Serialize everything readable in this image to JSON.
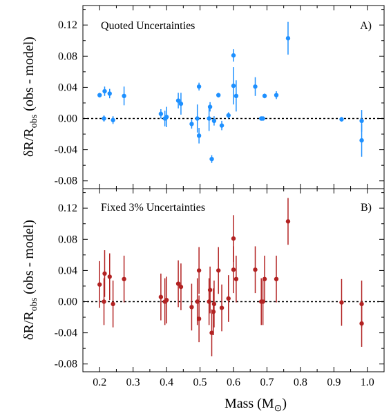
{
  "chart_data": {
    "type": "scatter",
    "x_axis": {
      "label_main": "Mass (M",
      "label_sub": "⊙",
      "label_close": ")",
      "lim": [
        0.15,
        1.05
      ],
      "ticks": [
        "0.2",
        "0.3",
        "0.4",
        "0.5",
        "0.6",
        "0.7",
        "0.8",
        "0.9",
        "1.0"
      ],
      "tick_values": [
        0.2,
        0.3,
        0.4,
        0.5,
        0.6,
        0.7,
        0.8,
        0.9,
        1.0
      ]
    },
    "y_axis": {
      "label_main": "δR/R",
      "label_sub": "obs",
      "label_tail": " (obs - model)"
    },
    "panels": [
      {
        "id": "A",
        "title": "Quoted Uncertainties",
        "tag": "A)",
        "color": "#1e90ff",
        "ylim": [
          -0.09,
          0.145
        ],
        "yticks": [
          "0.12",
          "0.08",
          "0.04",
          "0.00",
          "-0.04",
          "-0.08"
        ],
        "ytick_values": [
          0.12,
          0.08,
          0.04,
          0.0,
          -0.04,
          -0.08
        ],
        "reference_line": 0.0,
        "points": [
          {
            "x": 0.2,
            "y": 0.03,
            "err": 0.003
          },
          {
            "x": 0.213,
            "y": 0.0,
            "err": 0.004
          },
          {
            "x": 0.215,
            "y": 0.035,
            "err": 0.006
          },
          {
            "x": 0.23,
            "y": 0.032,
            "err": 0.006
          },
          {
            "x": 0.24,
            "y": -0.002,
            "err": 0.005
          },
          {
            "x": 0.273,
            "y": 0.029,
            "err": 0.012
          },
          {
            "x": 0.383,
            "y": 0.006,
            "err": 0.006
          },
          {
            "x": 0.395,
            "y": 0.0,
            "err": 0.01
          },
          {
            "x": 0.4,
            "y": 0.002,
            "err": 0.013
          },
          {
            "x": 0.435,
            "y": 0.023,
            "err": 0.01
          },
          {
            "x": 0.443,
            "y": 0.019,
            "err": 0.014
          },
          {
            "x": 0.475,
            "y": -0.007,
            "err": 0.006
          },
          {
            "x": 0.492,
            "y": 0.0,
            "err": 0.018
          },
          {
            "x": 0.497,
            "y": 0.041,
            "err": 0.005
          },
          {
            "x": 0.497,
            "y": -0.022,
            "err": 0.01
          },
          {
            "x": 0.527,
            "y": 0.0,
            "err": 0.016
          },
          {
            "x": 0.53,
            "y": 0.015,
            "err": 0.006
          },
          {
            "x": 0.535,
            "y": -0.052,
            "err": 0.005
          },
          {
            "x": 0.542,
            "y": -0.003,
            "err": 0.006
          },
          {
            "x": 0.555,
            "y": 0.03,
            "err": 0.003
          },
          {
            "x": 0.565,
            "y": -0.009,
            "err": 0.006
          },
          {
            "x": 0.585,
            "y": 0.004,
            "err": 0.004
          },
          {
            "x": 0.6,
            "y": 0.081,
            "err": 0.008
          },
          {
            "x": 0.6,
            "y": 0.042,
            "err": 0.024
          },
          {
            "x": 0.608,
            "y": 0.029,
            "err": 0.02
          },
          {
            "x": 0.665,
            "y": 0.041,
            "err": 0.012
          },
          {
            "x": 0.683,
            "y": 0.0,
            "err": 0.002
          },
          {
            "x": 0.688,
            "y": 0.0,
            "err": 0.002
          },
          {
            "x": 0.693,
            "y": 0.029,
            "err": 0.003
          },
          {
            "x": 0.728,
            "y": 0.03,
            "err": 0.005
          },
          {
            "x": 0.763,
            "y": 0.103,
            "err": 0.021
          },
          {
            "x": 0.923,
            "y": -0.001,
            "err": 0.003
          },
          {
            "x": 0.983,
            "y": -0.003,
            "err": 0.014
          },
          {
            "x": 0.983,
            "y": -0.028,
            "err": 0.021
          }
        ]
      },
      {
        "id": "B",
        "title": "Fixed 3% Uncertainties",
        "tag": "B)",
        "color": "#b22222",
        "ylim": [
          -0.09,
          0.145
        ],
        "yticks": [
          "0.12",
          "0.08",
          "0.04",
          "0.00",
          "-0.04",
          "-0.08"
        ],
        "ytick_values": [
          0.12,
          0.08,
          0.04,
          0.0,
          -0.04,
          -0.08
        ],
        "reference_line": 0.0,
        "points": [
          {
            "x": 0.2,
            "y": 0.022,
            "err": 0.03
          },
          {
            "x": 0.213,
            "y": 0.0,
            "err": 0.03
          },
          {
            "x": 0.215,
            "y": 0.036,
            "err": 0.03
          },
          {
            "x": 0.23,
            "y": 0.032,
            "err": 0.03
          },
          {
            "x": 0.24,
            "y": -0.003,
            "err": 0.03
          },
          {
            "x": 0.273,
            "y": 0.029,
            "err": 0.03
          },
          {
            "x": 0.383,
            "y": 0.006,
            "err": 0.03
          },
          {
            "x": 0.395,
            "y": 0.0,
            "err": 0.03
          },
          {
            "x": 0.4,
            "y": 0.002,
            "err": 0.03
          },
          {
            "x": 0.435,
            "y": 0.023,
            "err": 0.03
          },
          {
            "x": 0.443,
            "y": 0.019,
            "err": 0.03
          },
          {
            "x": 0.475,
            "y": -0.007,
            "err": 0.03
          },
          {
            "x": 0.492,
            "y": 0.0,
            "err": 0.03
          },
          {
            "x": 0.497,
            "y": 0.04,
            "err": 0.03
          },
          {
            "x": 0.497,
            "y": -0.022,
            "err": 0.03
          },
          {
            "x": 0.527,
            "y": 0.0,
            "err": 0.03
          },
          {
            "x": 0.53,
            "y": 0.015,
            "err": 0.03
          },
          {
            "x": 0.535,
            "y": -0.04,
            "err": 0.03
          },
          {
            "x": 0.54,
            "y": -0.013,
            "err": 0.03
          },
          {
            "x": 0.542,
            "y": -0.003,
            "err": 0.03
          },
          {
            "x": 0.555,
            "y": 0.04,
            "err": 0.03
          },
          {
            "x": 0.565,
            "y": -0.008,
            "err": 0.03
          },
          {
            "x": 0.585,
            "y": 0.004,
            "err": 0.03
          },
          {
            "x": 0.6,
            "y": 0.081,
            "err": 0.03
          },
          {
            "x": 0.6,
            "y": 0.041,
            "err": 0.03
          },
          {
            "x": 0.608,
            "y": 0.029,
            "err": 0.03
          },
          {
            "x": 0.665,
            "y": 0.041,
            "err": 0.03
          },
          {
            "x": 0.683,
            "y": 0.0,
            "err": 0.03
          },
          {
            "x": 0.688,
            "y": 0.0,
            "err": 0.03
          },
          {
            "x": 0.693,
            "y": 0.029,
            "err": 0.03
          },
          {
            "x": 0.728,
            "y": 0.029,
            "err": 0.03
          },
          {
            "x": 0.763,
            "y": 0.103,
            "err": 0.03
          },
          {
            "x": 0.923,
            "y": -0.001,
            "err": 0.03
          },
          {
            "x": 0.983,
            "y": -0.003,
            "err": 0.03
          },
          {
            "x": 0.983,
            "y": -0.028,
            "err": 0.03
          }
        ]
      }
    ]
  }
}
